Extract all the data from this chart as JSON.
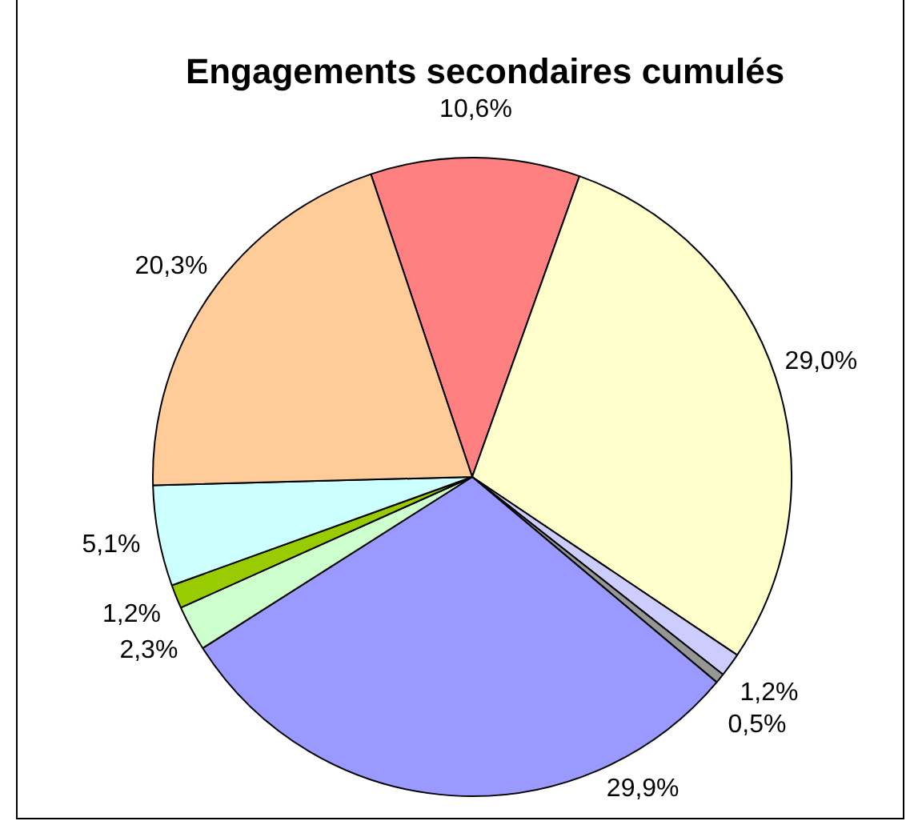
{
  "chart_data": {
    "type": "pie",
    "title": "Engagements secondaires cumulés",
    "categories": [
      null,
      null,
      null,
      null,
      null,
      null,
      null,
      null,
      null
    ],
    "values": [
      10.6,
      29.0,
      1.2,
      0.5,
      29.9,
      2.3,
      1.2,
      5.1,
      20.3
    ],
    "value_labels": [
      "10,6%",
      "29,0%",
      "1,2%",
      "0,5%",
      "29,9%",
      "2,3%",
      "1,2%",
      "5,1%",
      "20,3%"
    ],
    "colors": [
      "#ff8080",
      "#ffffcc",
      "#ccccff",
      "#969696",
      "#9999ff",
      "#ccffcc",
      "#99cc00",
      "#ccffff",
      "#ffcc99"
    ],
    "legend": false
  }
}
